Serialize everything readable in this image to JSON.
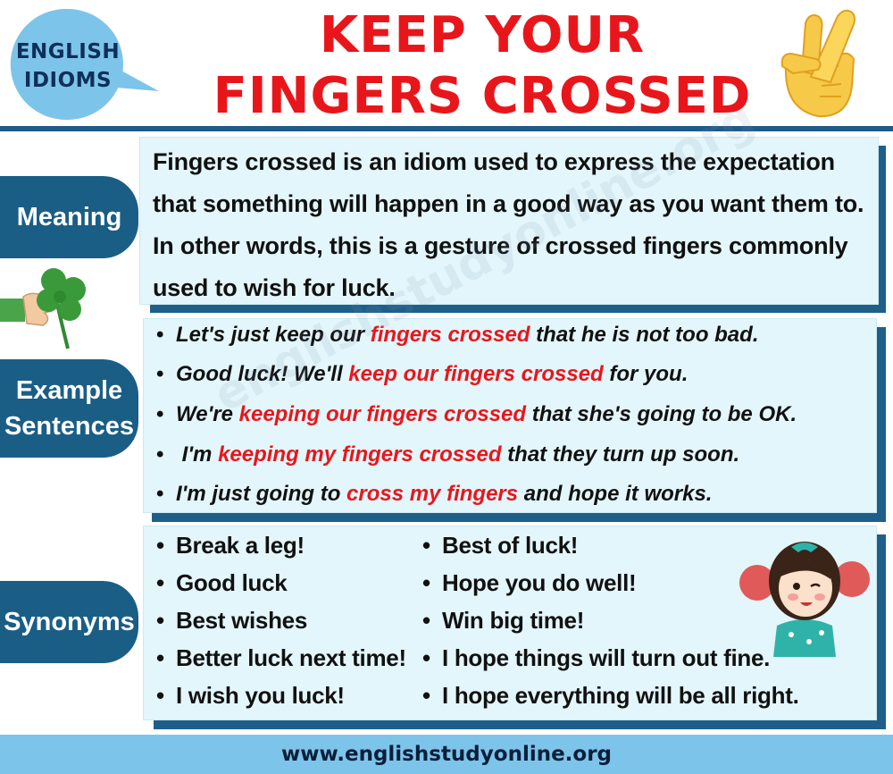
{
  "header": {
    "badge_line1": "ENGLISH",
    "badge_line2": "IDIOMS",
    "title_line1": "KEEP YOUR",
    "title_line2": "FINGERS CROSSED"
  },
  "labels": {
    "meaning": "Meaning",
    "examples_line1": "Example",
    "examples_line2": "Sentences",
    "synonyms": "Synonyms"
  },
  "meaning": {
    "lines": [
      "Fingers crossed is an idiom used to express the expectation",
      "that something will happen in a good way as you want them to.",
      "In other words, this is a gesture of crossed fingers commonly",
      "used to wish for luck."
    ]
  },
  "examples": [
    {
      "bullet": "•",
      "pre": "Let's just keep our ",
      "hl": "fingers crossed",
      "post": " that he is not too bad."
    },
    {
      "bullet": "•",
      "pre": "Good luck! We'll ",
      "hl": "keep our fingers crossed",
      "post": " for you."
    },
    {
      "bullet": "•",
      "pre": "We're ",
      "hl": "keeping our fingers crossed",
      "post": " that she's going to be OK."
    },
    {
      "bullet": "•",
      "pre": " I'm ",
      "hl": "keeping my fingers crossed",
      "post": " that they turn up soon."
    },
    {
      "bullet": "•",
      "pre": "I'm just going to ",
      "hl": "cross my fingers",
      "post": " and hope it works."
    }
  ],
  "synonyms": {
    "left": [
      "Break a leg!",
      "Good luck",
      "Best wishes",
      "Better luck next time!",
      "I wish you luck!"
    ],
    "right": [
      "Best of luck!",
      "Hope you do well!",
      "Win big time!",
      "I hope things will turn out fine.",
      "I hope everything will be all right."
    ]
  },
  "footer": {
    "url": "www.englishstudyonline.org"
  },
  "watermark": "englishstudyonline.org",
  "colors": {
    "title_red": "#e8161b",
    "label_blue": "#1a5e86",
    "panel_bg": "#e3f6fb",
    "footer_bg": "#7dc4ea"
  },
  "icons": [
    "speech-bubble-icon",
    "crossed-fingers-icon",
    "clover-hand-icon",
    "cheerleader-girl-icon"
  ]
}
